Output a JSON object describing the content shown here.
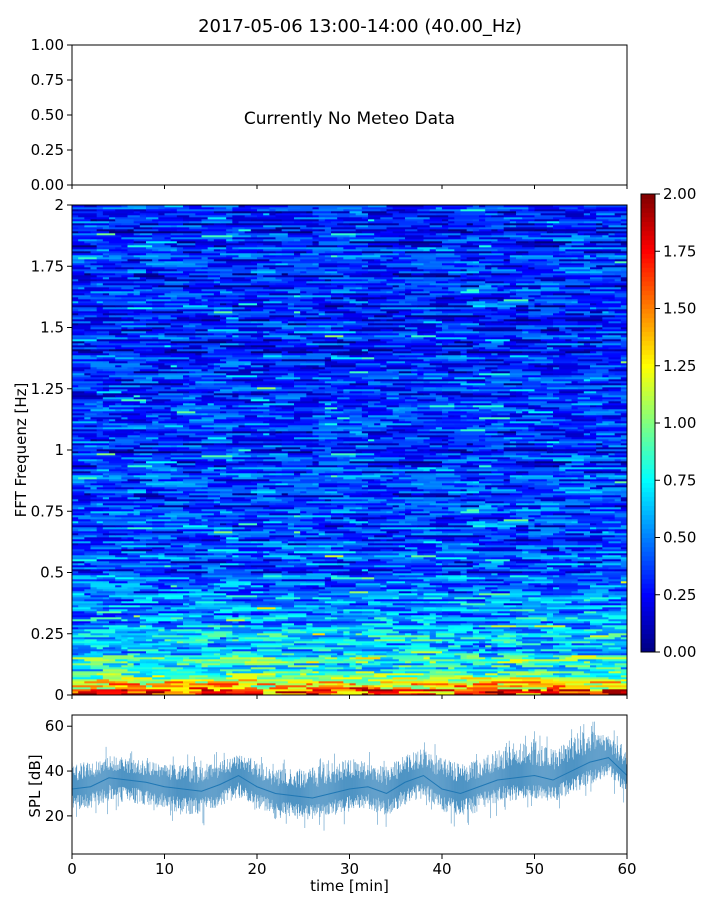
{
  "figure": {
    "title": "2017-05-06 13:00-14:00 (40.00_Hz)"
  },
  "chart_data": [
    {
      "type": "other",
      "panel": "meteo",
      "message": "Currently No Meteo Data",
      "ylim": [
        0,
        1
      ],
      "y_tick_labels": [
        "0.00",
        "0.25",
        "0.50",
        "0.75",
        "1.00"
      ],
      "xlim": [
        0,
        60
      ]
    },
    {
      "type": "heatmap",
      "panel": "spectrogram",
      "ylabel": "FFT Frequenz [Hz]",
      "ylim": [
        0,
        2
      ],
      "xlim": [
        0,
        60
      ],
      "y_tick_labels": [
        "0",
        "0.25",
        "0.5",
        "0.75",
        "1",
        "1.25",
        "1.5",
        "1.75",
        "2"
      ],
      "colormap": "jet",
      "colorbar": {
        "range": [
          0,
          2
        ],
        "tick_labels": [
          "0.00",
          "0.25",
          "0.50",
          "0.75",
          "1.00",
          "1.25",
          "1.50",
          "1.75",
          "2.00"
        ]
      },
      "approx_mean_by_frequency": [
        {
          "hz": 0.0,
          "value": 1.6
        },
        {
          "hz": 0.05,
          "value": 1.2
        },
        {
          "hz": 0.1,
          "value": 0.85
        },
        {
          "hz": 0.2,
          "value": 0.65
        },
        {
          "hz": 0.3,
          "value": 0.55
        },
        {
          "hz": 0.5,
          "value": 0.42
        },
        {
          "hz": 0.75,
          "value": 0.36
        },
        {
          "hz": 1.0,
          "value": 0.33
        },
        {
          "hz": 1.5,
          "value": 0.31
        },
        {
          "hz": 2.0,
          "value": 0.3
        }
      ]
    },
    {
      "type": "area",
      "panel": "spl",
      "ylabel": "SPL [dB]",
      "xlabel": "time [min]",
      "xlim": [
        0,
        60
      ],
      "ylim": [
        3,
        65
      ],
      "x_tick_labels": [
        "0",
        "10",
        "20",
        "30",
        "40",
        "50",
        "60"
      ],
      "y_tick_labels": [
        "20",
        "40",
        "60"
      ],
      "color": "#1f77b4",
      "series": [
        {
          "x": [
            0,
            2,
            4,
            6,
            8,
            10,
            12,
            14,
            16,
            18,
            20,
            22,
            24,
            26,
            28,
            30,
            32,
            34,
            36,
            38,
            40,
            42,
            44,
            46,
            48,
            50,
            52,
            54,
            56,
            58,
            60
          ],
          "values": [
            32,
            33,
            37,
            36,
            35,
            33,
            32,
            31,
            34,
            38,
            33,
            30,
            29,
            28,
            30,
            32,
            33,
            30,
            35,
            38,
            32,
            30,
            33,
            36,
            37,
            38,
            36,
            40,
            44,
            46,
            38
          ],
          "lower": [
            22,
            23,
            27,
            26,
            25,
            23,
            20,
            21,
            24,
            28,
            23,
            20,
            19,
            18,
            20,
            22,
            23,
            20,
            25,
            28,
            22,
            20,
            23,
            26,
            27,
            28,
            26,
            30,
            34,
            38,
            30
          ],
          "upper": [
            44,
            44,
            47,
            46,
            45,
            43,
            43,
            42,
            44,
            48,
            44,
            41,
            41,
            42,
            44,
            46,
            44,
            42,
            47,
            50,
            46,
            43,
            45,
            50,
            52,
            54,
            50,
            55,
            58,
            56,
            48
          ]
        }
      ]
    }
  ]
}
